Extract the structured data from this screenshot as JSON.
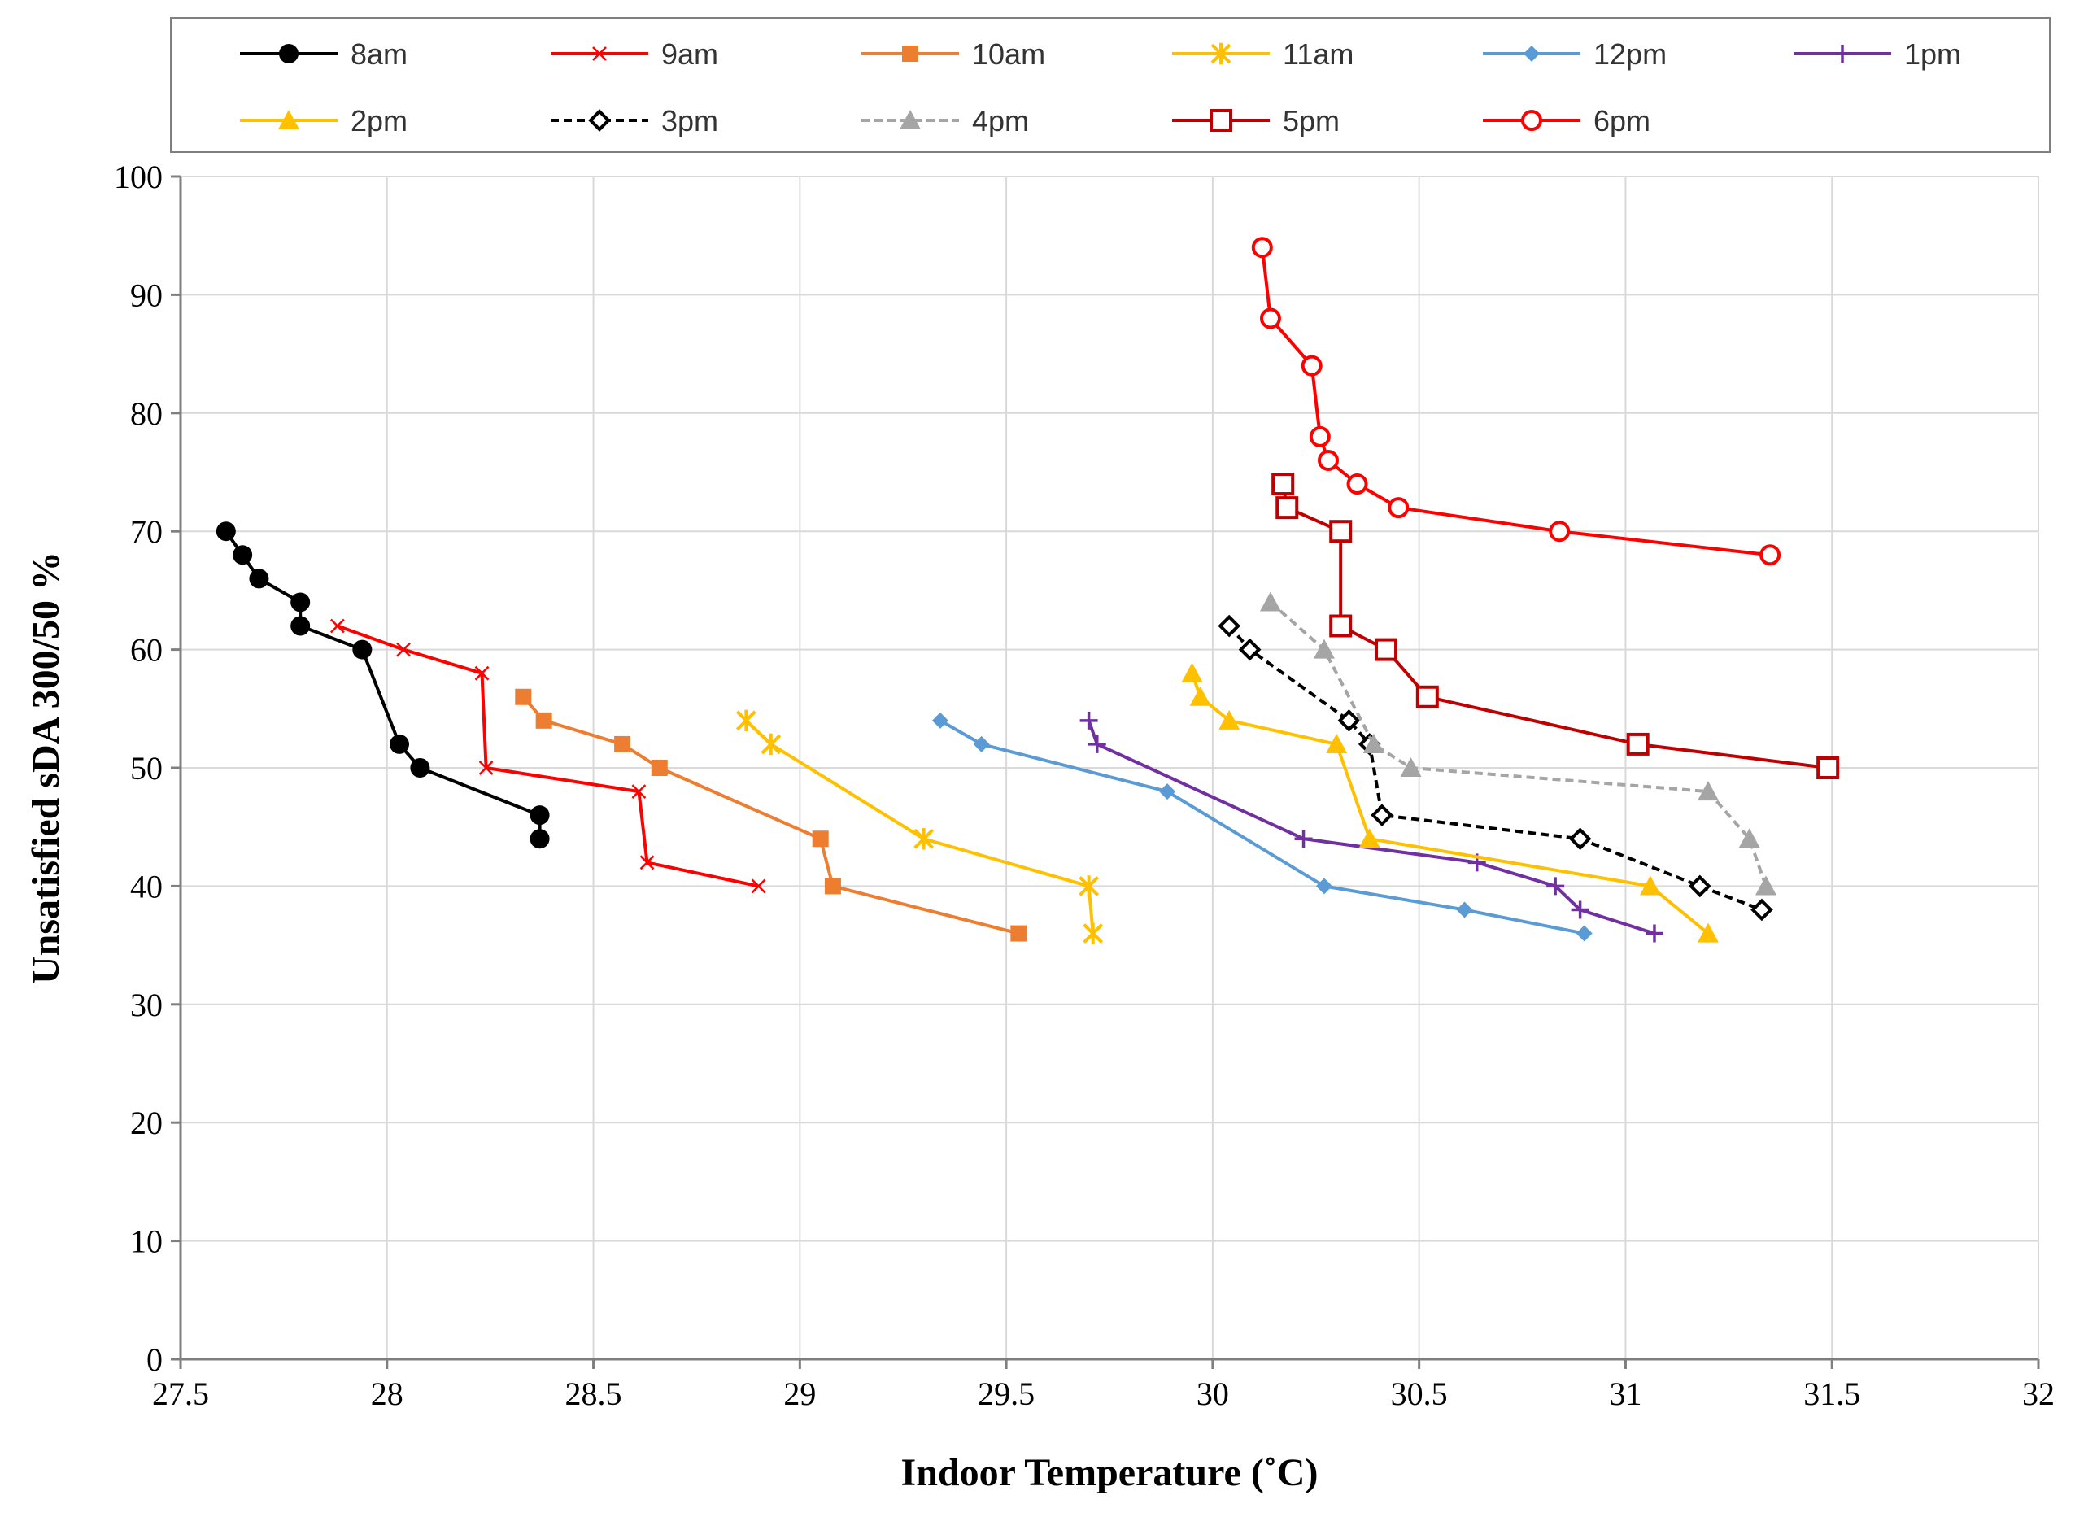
{
  "chart_data": {
    "type": "scatter",
    "title": "",
    "xlabel": "Indoor Temperature (˚C)",
    "ylabel": "Unsatisfied sDA 300/50 %",
    "xlim": [
      27.5,
      32
    ],
    "ylim": [
      0,
      100
    ],
    "xticks": [
      "27.5",
      "28",
      "28.5",
      "29",
      "29.5",
      "30",
      "30.5",
      "31",
      "31.5",
      "32"
    ],
    "yticks": [
      "0",
      "10",
      "20",
      "30",
      "40",
      "50",
      "60",
      "70",
      "80",
      "90",
      "100"
    ],
    "grid": true,
    "legend_position": "top",
    "series": [
      {
        "name": "8am",
        "color": "#000000",
        "dash": "solid",
        "marker": "filled-circle",
        "points": [
          [
            27.61,
            70
          ],
          [
            27.65,
            68
          ],
          [
            27.69,
            66
          ],
          [
            27.79,
            64
          ],
          [
            27.79,
            62
          ],
          [
            27.94,
            60
          ],
          [
            28.03,
            52
          ],
          [
            28.08,
            50
          ],
          [
            28.37,
            46
          ],
          [
            28.37,
            44
          ]
        ]
      },
      {
        "name": "9am",
        "color": "#ff0000",
        "dash": "solid",
        "marker": "x",
        "points": [
          [
            27.88,
            62
          ],
          [
            28.04,
            60
          ],
          [
            28.23,
            58
          ],
          [
            28.24,
            50
          ],
          [
            28.61,
            48
          ],
          [
            28.63,
            42
          ],
          [
            28.9,
            40
          ]
        ]
      },
      {
        "name": "10am",
        "color": "#ed7d31",
        "dash": "solid",
        "marker": "filled-square",
        "points": [
          [
            28.33,
            56
          ],
          [
            28.38,
            54
          ],
          [
            28.57,
            52
          ],
          [
            28.66,
            50
          ],
          [
            29.05,
            44
          ],
          [
            29.08,
            40
          ],
          [
            29.53,
            36
          ]
        ]
      },
      {
        "name": "11am",
        "color": "#ffc000",
        "dash": "solid",
        "marker": "asterisk",
        "points": [
          [
            28.87,
            54
          ],
          [
            28.93,
            52
          ],
          [
            29.3,
            44
          ],
          [
            29.7,
            40
          ],
          [
            29.71,
            36
          ]
        ]
      },
      {
        "name": "12pm",
        "color": "#5b9bd5",
        "dash": "solid",
        "marker": "filled-diamond",
        "points": [
          [
            29.34,
            54
          ],
          [
            29.44,
            52
          ],
          [
            29.89,
            48
          ],
          [
            30.27,
            40
          ],
          [
            30.61,
            38
          ],
          [
            30.9,
            36
          ]
        ]
      },
      {
        "name": "1pm",
        "color": "#7030a0",
        "dash": "solid",
        "marker": "plus",
        "points": [
          [
            29.7,
            54
          ],
          [
            29.72,
            52
          ],
          [
            30.22,
            44
          ],
          [
            30.64,
            42
          ],
          [
            30.83,
            40
          ],
          [
            30.89,
            38
          ],
          [
            31.07,
            36
          ]
        ]
      },
      {
        "name": "2pm",
        "color": "#ffc000",
        "dash": "solid",
        "marker": "filled-triangle",
        "points": [
          [
            29.95,
            58
          ],
          [
            29.97,
            56
          ],
          [
            30.04,
            54
          ],
          [
            30.3,
            52
          ],
          [
            30.38,
            44
          ],
          [
            31.06,
            40
          ],
          [
            31.2,
            36
          ]
        ]
      },
      {
        "name": "3pm",
        "color": "#000000",
        "dash": "dashed",
        "marker": "open-diamond",
        "points": [
          [
            30.04,
            62
          ],
          [
            30.09,
            60
          ],
          [
            30.33,
            54
          ],
          [
            30.38,
            52
          ],
          [
            30.41,
            46
          ],
          [
            30.89,
            44
          ],
          [
            31.18,
            40
          ],
          [
            31.33,
            38
          ]
        ]
      },
      {
        "name": "4pm",
        "color": "#a5a5a5",
        "dash": "dashed",
        "marker": "filled-triangle",
        "points": [
          [
            30.14,
            64
          ],
          [
            30.27,
            60
          ],
          [
            30.39,
            52
          ],
          [
            30.48,
            50
          ],
          [
            31.2,
            48
          ],
          [
            31.3,
            44
          ],
          [
            31.34,
            40
          ]
        ]
      },
      {
        "name": "5pm",
        "color": "#c00000",
        "dash": "solid",
        "marker": "open-square",
        "points": [
          [
            30.17,
            74
          ],
          [
            30.18,
            72
          ],
          [
            30.31,
            70
          ],
          [
            30.31,
            62
          ],
          [
            30.42,
            60
          ],
          [
            30.52,
            56
          ],
          [
            31.03,
            52
          ],
          [
            31.49,
            50
          ]
        ]
      },
      {
        "name": "6pm",
        "color": "#ff0000",
        "dash": "solid",
        "marker": "open-circle",
        "points": [
          [
            30.12,
            94
          ],
          [
            30.14,
            88
          ],
          [
            30.24,
            84
          ],
          [
            30.26,
            78
          ],
          [
            30.28,
            76
          ],
          [
            30.35,
            74
          ],
          [
            30.45,
            72
          ],
          [
            30.84,
            70
          ],
          [
            31.35,
            68
          ]
        ]
      }
    ]
  }
}
